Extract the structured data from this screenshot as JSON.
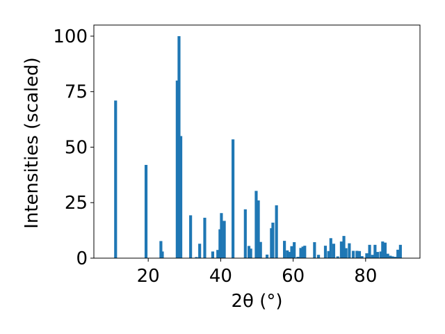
{
  "chart_data": {
    "type": "bar",
    "xlabel": "2θ (°)",
    "ylabel": "Intensities (scaled)",
    "xlim": [
      5,
      95
    ],
    "ylim": [
      0,
      105
    ],
    "xticks": [
      20,
      40,
      60,
      80
    ],
    "yticks": [
      0,
      25,
      50,
      75,
      100
    ],
    "grid": false,
    "legend": "none",
    "bar_color": "#1f77b4",
    "bar_width": 0.8,
    "x": [
      11.0,
      19.4,
      23.5,
      23.9,
      28.0,
      28.5,
      29.0,
      31.7,
      33.3,
      34.2,
      35.6,
      37.8,
      39.2,
      39.8,
      40.2,
      41.0,
      43.4,
      46.8,
      47.8,
      48.3,
      49.8,
      50.4,
      51.0,
      52.8,
      54.0,
      54.4,
      55.4,
      57.6,
      58.4,
      59.0,
      59.6,
      60.3,
      61.3,
      62.1,
      62.7,
      63.2,
      65.9,
      67.0,
      68.9,
      69.8,
      70.4,
      71.2,
      72.3,
      73.3,
      74.0,
      74.6,
      75.5,
      76.6,
      77.6,
      78.3,
      79.0,
      80.3,
      81.1,
      81.9,
      82.6,
      83.3,
      84.2,
      84.7,
      85.4,
      86.1,
      86.8,
      87.4,
      88.2,
      88.9,
      89.6
    ],
    "values": [
      71.0,
      42.0,
      7.7,
      3.0,
      80.0,
      100.0,
      55.0,
      19.3,
      0.5,
      6.5,
      18.2,
      3.0,
      3.7,
      13.0,
      20.3,
      16.8,
      53.5,
      22.0,
      5.5,
      4.3,
      30.3,
      26.0,
      7.3,
      1.6,
      13.5,
      16.0,
      23.8,
      7.8,
      3.5,
      2.8,
      5.4,
      7.2,
      0.6,
      4.6,
      5.2,
      5.6,
      7.2,
      1.5,
      5.6,
      3.2,
      9.0,
      6.5,
      0.8,
      7.5,
      10.0,
      4.5,
      6.7,
      3.3,
      3.3,
      3.2,
      0.9,
      2.2,
      6.0,
      1.5,
      6.0,
      2.8,
      3.0,
      7.5,
      7.0,
      2.0,
      1.1,
      0.8,
      0.6,
      3.8,
      6.0
    ]
  }
}
